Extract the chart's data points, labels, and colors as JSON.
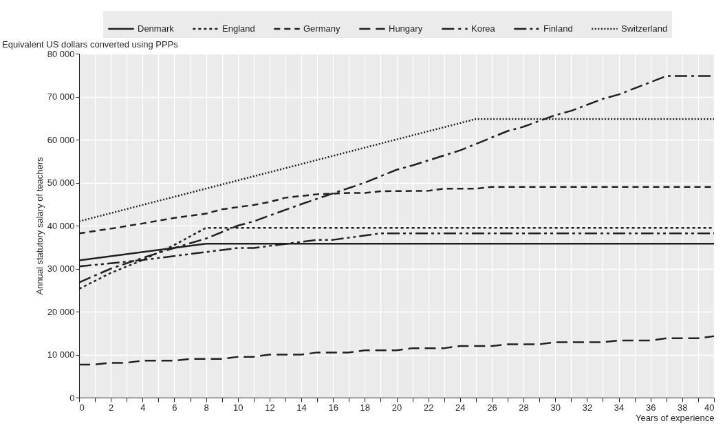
{
  "chart_data": {
    "type": "line",
    "subtitle": "Equivalent US dollars converted using PPPs",
    "xlabel": "Years of experience",
    "ylabel": "Annual statutory salary of teachers",
    "xlim": [
      0,
      40
    ],
    "ylim": [
      0,
      80000
    ],
    "xticks": [
      0,
      {
        "value": 1,
        "label": null
      },
      2,
      {
        "value": 3,
        "label": null
      },
      4,
      {
        "value": 5,
        "label": null
      },
      6,
      {
        "value": 7,
        "label": null
      },
      8,
      {
        "value": 9,
        "label": null
      },
      10,
      {
        "value": 11,
        "label": null
      },
      12,
      {
        "value": 13,
        "label": null
      },
      14,
      {
        "value": 15,
        "label": null
      },
      16,
      {
        "value": 17,
        "label": null
      },
      18,
      {
        "value": 19,
        "label": null
      },
      20,
      {
        "value": 21,
        "label": null
      },
      22,
      {
        "value": 23,
        "label": null
      },
      24,
      {
        "value": 25,
        "label": null
      },
      26,
      {
        "value": 27,
        "label": null
      },
      28,
      {
        "value": 29,
        "label": null
      },
      30,
      {
        "value": 31,
        "label": null
      },
      32,
      {
        "value": 33,
        "label": null
      },
      34,
      {
        "value": 35,
        "label": null
      },
      36,
      {
        "value": 37,
        "label": null
      },
      38,
      {
        "value": 39,
        "label": null
      },
      40
    ],
    "yticks": [
      0,
      {
        "value": 10000,
        "label": "10 000"
      },
      {
        "value": 20000,
        "label": "20 000"
      },
      {
        "value": 30000,
        "label": "30 000"
      },
      {
        "value": 40000,
        "label": "40 000"
      },
      {
        "value": 50000,
        "label": "50 000"
      },
      {
        "value": 60000,
        "label": "60 000"
      },
      {
        "value": 70000,
        "label": "70 000"
      },
      {
        "value": 80000,
        "label": "80 000"
      }
    ],
    "grid": true,
    "legend": "top",
    "series": [
      {
        "name": "Denmark",
        "color": "#231f20",
        "line_style": "solid",
        "x": [
          0,
          8,
          40
        ],
        "values": [
          31900,
          35800,
          35800
        ]
      },
      {
        "name": "England",
        "color": "#231f20",
        "line_style": "dotted",
        "x": [
          0,
          2,
          4,
          6,
          8,
          40
        ],
        "values": [
          25300,
          29000,
          32000,
          35500,
          39500,
          39500
        ]
      },
      {
        "name": "Germany",
        "color": "#231f20",
        "line_style": "dashed",
        "x": [
          0,
          2,
          4,
          6,
          8,
          9,
          11,
          12,
          13,
          15,
          17,
          18,
          19,
          22,
          23,
          25,
          26,
          40
        ],
        "values": [
          38200,
          39300,
          40500,
          41800,
          42800,
          43800,
          44800,
          45500,
          46500,
          47300,
          47600,
          47600,
          48000,
          48100,
          48600,
          48600,
          49000,
          49000
        ]
      },
      {
        "name": "Hungary",
        "color": "#231f20",
        "line_style": "longdash",
        "x": [
          0,
          1,
          2,
          3,
          4,
          6,
          7,
          9,
          10,
          11,
          12,
          14,
          15,
          17,
          18,
          20,
          21,
          23,
          24,
          26,
          27,
          29,
          30,
          33,
          34,
          36,
          37,
          39,
          40
        ],
        "values": [
          7700,
          7700,
          8100,
          8100,
          8600,
          8600,
          9000,
          9000,
          9500,
          9500,
          10000,
          10000,
          10500,
          10500,
          11000,
          11000,
          11500,
          11500,
          12000,
          12000,
          12400,
          12400,
          12900,
          12900,
          13300,
          13300,
          13800,
          13800,
          14300
        ]
      },
      {
        "name": "Korea",
        "color": "#231f20",
        "line_style": "dashdot",
        "x": [
          0,
          2,
          4,
          6,
          8,
          10,
          11,
          14,
          16,
          18,
          20,
          21,
          24,
          25,
          27,
          28,
          30,
          31,
          33,
          34,
          37,
          40
        ],
        "values": [
          26800,
          30000,
          32500,
          34800,
          37000,
          40000,
          41000,
          45000,
          47500,
          50000,
          53000,
          54000,
          57500,
          59000,
          62000,
          63000,
          65700,
          66700,
          69500,
          70500,
          74800,
          74800
        ]
      },
      {
        "name": "Finland",
        "color": "#231f20",
        "line_style": "dashdotdot",
        "x": [
          0,
          4,
          10,
          11,
          15,
          16,
          19,
          40
        ],
        "values": [
          30500,
          32000,
          34800,
          34800,
          36700,
          36700,
          38200,
          38200
        ]
      },
      {
        "name": "Switzerland",
        "color": "#231f20",
        "line_style": "finedotted",
        "x": [
          0,
          25,
          40
        ],
        "values": [
          41000,
          64800,
          64800
        ]
      }
    ]
  }
}
